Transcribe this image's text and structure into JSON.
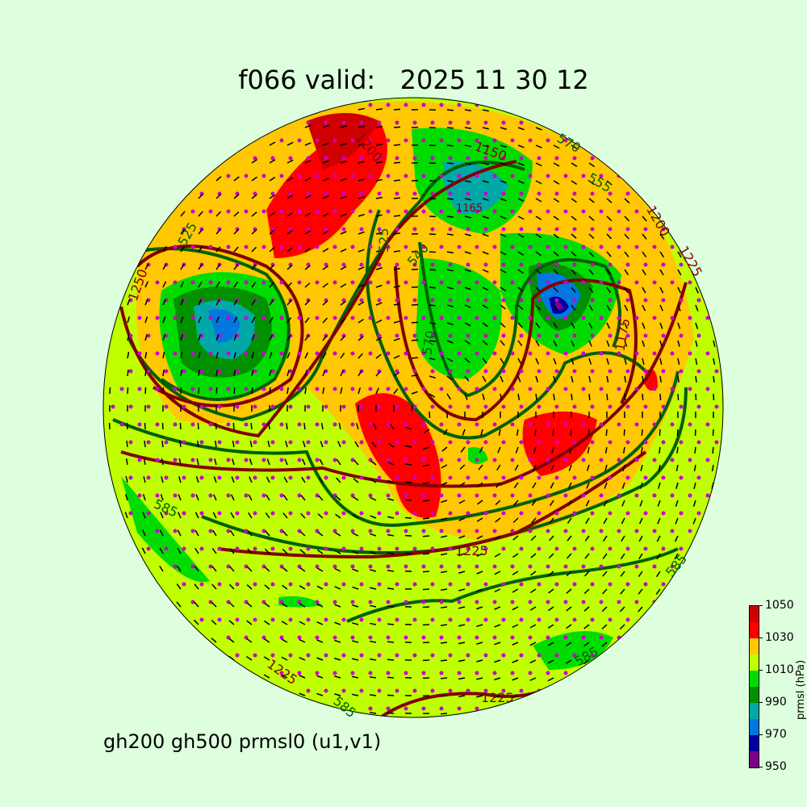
{
  "title": "f066 valid:   2025 11 30 12",
  "subtitle": "gh200 gh500 prmsl0 (u1,v1)",
  "colorbar": {
    "label": "prmsl (hPa)",
    "ticks": [
      "950",
      "970",
      "990",
      "1010",
      "1030",
      "1050"
    ],
    "bounds": [
      950,
      960,
      970,
      980,
      990,
      1000,
      1010,
      1020,
      1030,
      1040,
      1050
    ],
    "colors": [
      "#7a0088",
      "#0000a0",
      "#0078e0",
      "#00a8a8",
      "#009000",
      "#00dc00",
      "#c0ff00",
      "#ffc800",
      "#ff0000",
      "#d00000"
    ]
  },
  "contour_colors": {
    "gh500": "#006000",
    "gh200": "#800000"
  },
  "contour_labels": {
    "gh500": [
      "525",
      "570",
      "555",
      "585",
      "585",
      "585",
      "525",
      "540",
      "570",
      "585"
    ],
    "gh200": [
      "1200",
      "1225",
      "1250",
      "1225",
      "1225",
      "1150",
      "1225",
      "1200",
      "1175"
    ]
  },
  "low_label": "1165"
}
